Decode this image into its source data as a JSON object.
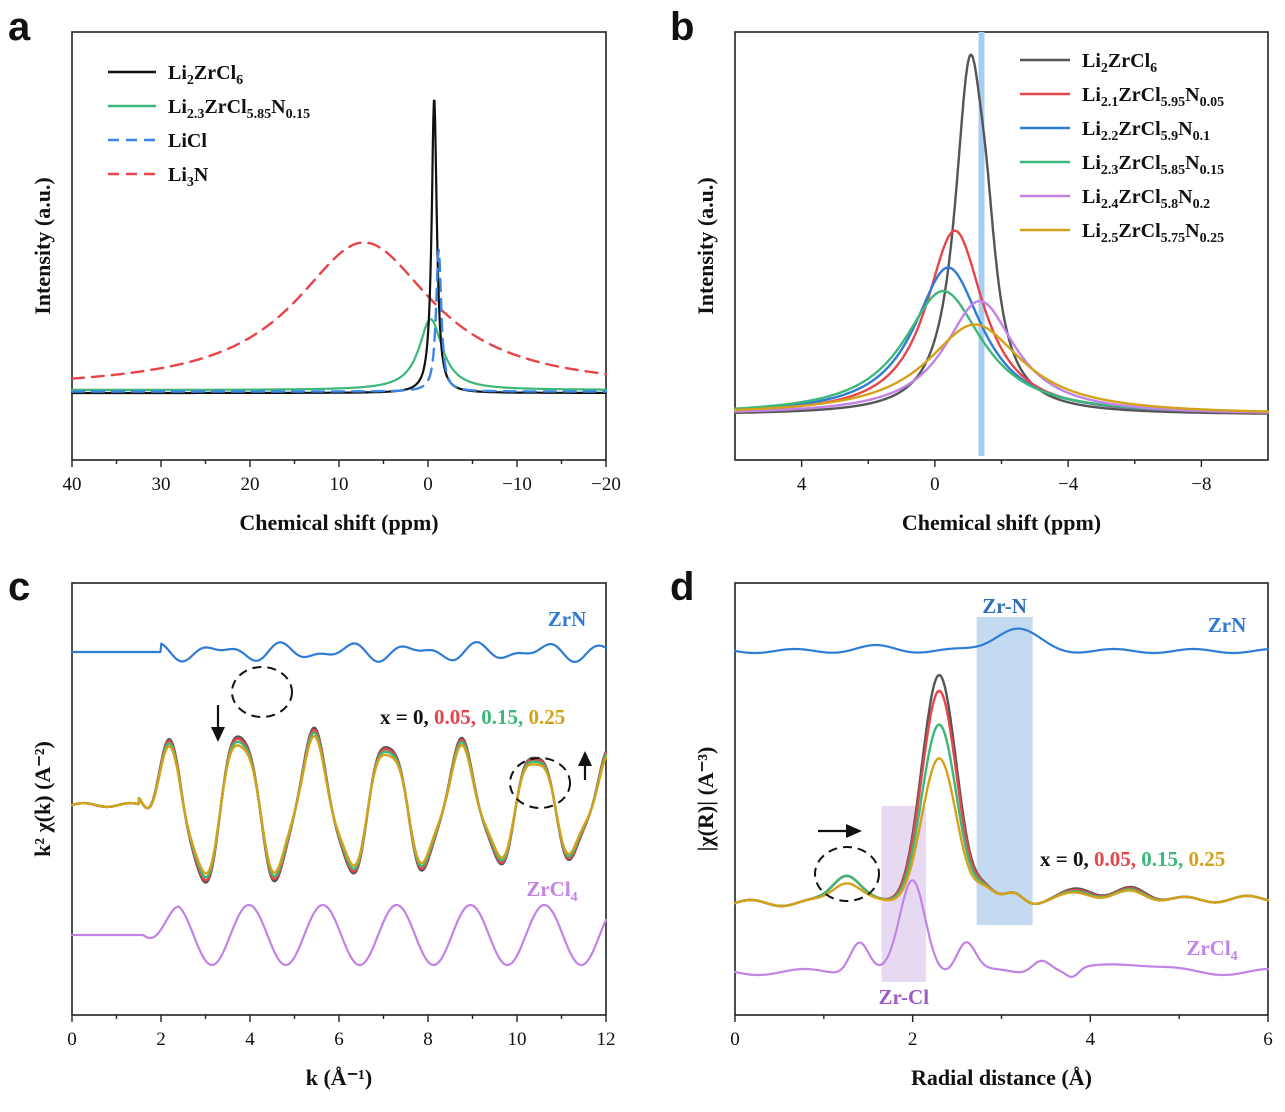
{
  "colors": {
    "black": "#111111",
    "gray": "#555555",
    "red": "#e8454a",
    "blue": "#2f7bd6",
    "green": "#3cb878",
    "purple": "#c283e6",
    "orange": "#d4a21a",
    "licl_blue": "#3b86e3",
    "zrcl_band": "#e6d5f2",
    "zrn_band": "#bdd6f0",
    "ref_line": "#a9cdf2"
  },
  "chart_data": [
    {
      "panel": "a",
      "type": "line",
      "xlabel": "Chemical shift (ppm)",
      "ylabel": "Intensity (a.u.)",
      "xlim": [
        40,
        -20
      ],
      "xticks": [
        "40",
        "30",
        "20",
        "10",
        "0",
        "−10",
        "−20"
      ],
      "xtick_values": [
        40,
        30,
        20,
        10,
        0,
        -10,
        -20
      ],
      "legend_position": "top-left",
      "series": [
        {
          "name": "Li2ZrCl6",
          "label_main": "Li",
          "parts": [
            [
              "Li",
              ""
            ],
            [
              "2",
              "sub"
            ],
            [
              "ZrCl",
              ""
            ],
            [
              "6",
              "sub"
            ]
          ],
          "color_key": "black",
          "dash": false,
          "center": -0.7,
          "width": 0.35,
          "height": 1.0,
          "base": 0.0,
          "shape": "lorentz"
        },
        {
          "name": "Li2.3ZrCl5.85N0.15",
          "parts": [
            [
              "Li",
              ""
            ],
            [
              "2.3",
              "sub"
            ],
            [
              "ZrCl",
              ""
            ],
            [
              "5.85",
              "sub"
            ],
            [
              "N",
              ""
            ],
            [
              "0.15",
              "sub"
            ]
          ],
          "color_key": "green",
          "dash": false,
          "center": -0.3,
          "width": 1.6,
          "height": 0.24,
          "base": 0.01,
          "shape": "lorentz"
        },
        {
          "name": "LiCl",
          "parts": [
            [
              "LiCl",
              ""
            ]
          ],
          "color_key": "licl_blue",
          "dash": true,
          "center": -1.2,
          "width": 0.35,
          "height": 0.48,
          "base": 0.005,
          "shape": "lorentz"
        },
        {
          "name": "Li3N",
          "parts": [
            [
              "Li",
              ""
            ],
            [
              "3",
              "sub"
            ],
            [
              "N",
              ""
            ]
          ],
          "color_key": "red",
          "dash": true,
          "center": 7.2,
          "width": 9.5,
          "height": 0.5,
          "base": 0.0,
          "shape": "lorentz"
        }
      ]
    },
    {
      "panel": "b",
      "type": "line",
      "xlabel": "Chemical shift (ppm)",
      "ylabel": "Intensity (a.u.)",
      "xlim": [
        6,
        -10
      ],
      "xticks": [
        "4",
        "0",
        "−4",
        "−8"
      ],
      "xtick_values": [
        4,
        0,
        -4,
        -8
      ],
      "reference_line_x": -1.4,
      "legend_position": "top-right",
      "series": [
        {
          "name": "Li2ZrCl6",
          "parts": [
            [
              "Li",
              ""
            ],
            [
              "2",
              "sub"
            ],
            [
              "ZrCl",
              ""
            ],
            [
              "6",
              "sub"
            ]
          ],
          "color_key": "gray",
          "center": -1.05,
          "width": 0.55,
          "height": 1.0
        },
        {
          "name": "Li2.1ZrCl5.95N0.05",
          "parts": [
            [
              "Li",
              ""
            ],
            [
              "2.1",
              "sub"
            ],
            [
              "ZrCl",
              ""
            ],
            [
              "5.95",
              "sub"
            ],
            [
              "N",
              ""
            ],
            [
              "0.05",
              "sub"
            ]
          ],
          "color_key": "red",
          "center": -0.6,
          "width": 1.05,
          "height": 0.55
        },
        {
          "name": "Li2.2ZrCl5.9N0.1",
          "parts": [
            [
              "Li",
              ""
            ],
            [
              "2.2",
              "sub"
            ],
            [
              "ZrCl",
              ""
            ],
            [
              "5.9",
              "sub"
            ],
            [
              "N",
              ""
            ],
            [
              "0.1",
              "sub"
            ]
          ],
          "color_key": "blue",
          "center": -0.4,
          "width": 1.25,
          "height": 0.44
        },
        {
          "name": "Li2.3ZrCl5.85N0.15",
          "parts": [
            [
              "Li",
              ""
            ],
            [
              "2.3",
              "sub"
            ],
            [
              "ZrCl",
              ""
            ],
            [
              "5.85",
              "sub"
            ],
            [
              "N",
              ""
            ],
            [
              "0.15",
              "sub"
            ]
          ],
          "color_key": "green",
          "center": -0.25,
          "width": 1.45,
          "height": 0.37
        },
        {
          "name": "Li2.4ZrCl5.8N0.2",
          "parts": [
            [
              "Li",
              ""
            ],
            [
              "2.4",
              "sub"
            ],
            [
              "ZrCl",
              ""
            ],
            [
              "5.8",
              "sub"
            ],
            [
              "N",
              ""
            ],
            [
              "0.2",
              "sub"
            ]
          ],
          "color_key": "purple",
          "center": -1.35,
          "width": 1.3,
          "height": 0.34
        },
        {
          "name": "Li2.5ZrCl5.75N0.25",
          "parts": [
            [
              "Li",
              ""
            ],
            [
              "2.5",
              "sub"
            ],
            [
              "ZrCl",
              ""
            ],
            [
              "5.75",
              "sub"
            ],
            [
              "N",
              ""
            ],
            [
              "0.25",
              "sub"
            ]
          ],
          "color_key": "orange",
          "center": -1.2,
          "width": 1.75,
          "height": 0.27
        }
      ]
    },
    {
      "panel": "c",
      "type": "line",
      "xlabel": "k (Å⁻¹)",
      "ylabel": "k² χ(k) (A⁻²)",
      "xlim": [
        0,
        12
      ],
      "xticks": [
        "0",
        "2",
        "4",
        "6",
        "8",
        "10",
        "12"
      ],
      "xtick_values": [
        0,
        2,
        4,
        6,
        8,
        10,
        12
      ],
      "reference_labels": {
        "top": "ZrN",
        "bottom": "ZrCl4"
      },
      "composition_label": {
        "prefix": "x = 0,",
        "values": [
          "0.05,",
          "0.15,",
          "0.25"
        ]
      }
    },
    {
      "panel": "d",
      "type": "line",
      "xlabel": "Radial distance (Å)",
      "ylabel": "|χ(R)| (A⁻³)",
      "xlim": [
        0,
        6
      ],
      "xticks": [
        "0",
        "2",
        "4",
        "6"
      ],
      "xtick_values": [
        0,
        2,
        4,
        6
      ],
      "bands": [
        {
          "label": "Zr-Cl",
          "x0": 1.65,
          "x1": 2.15,
          "color_key": "zrcl_band"
        },
        {
          "label": "Zr-N",
          "x0": 2.72,
          "x1": 3.35,
          "color_key": "zrn_band"
        }
      ],
      "reference_labels": {
        "top": "ZrN",
        "bottom": "ZrCl4"
      },
      "composition_label": {
        "prefix": "x = 0,",
        "values": [
          "0.05,",
          "0.15,",
          "0.25"
        ]
      }
    }
  ],
  "panels": [
    "a",
    "b",
    "c",
    "d"
  ],
  "ref": {
    "zrn": "ZrN",
    "zrcl": "ZrCl",
    "zrcl_sub": "4"
  }
}
